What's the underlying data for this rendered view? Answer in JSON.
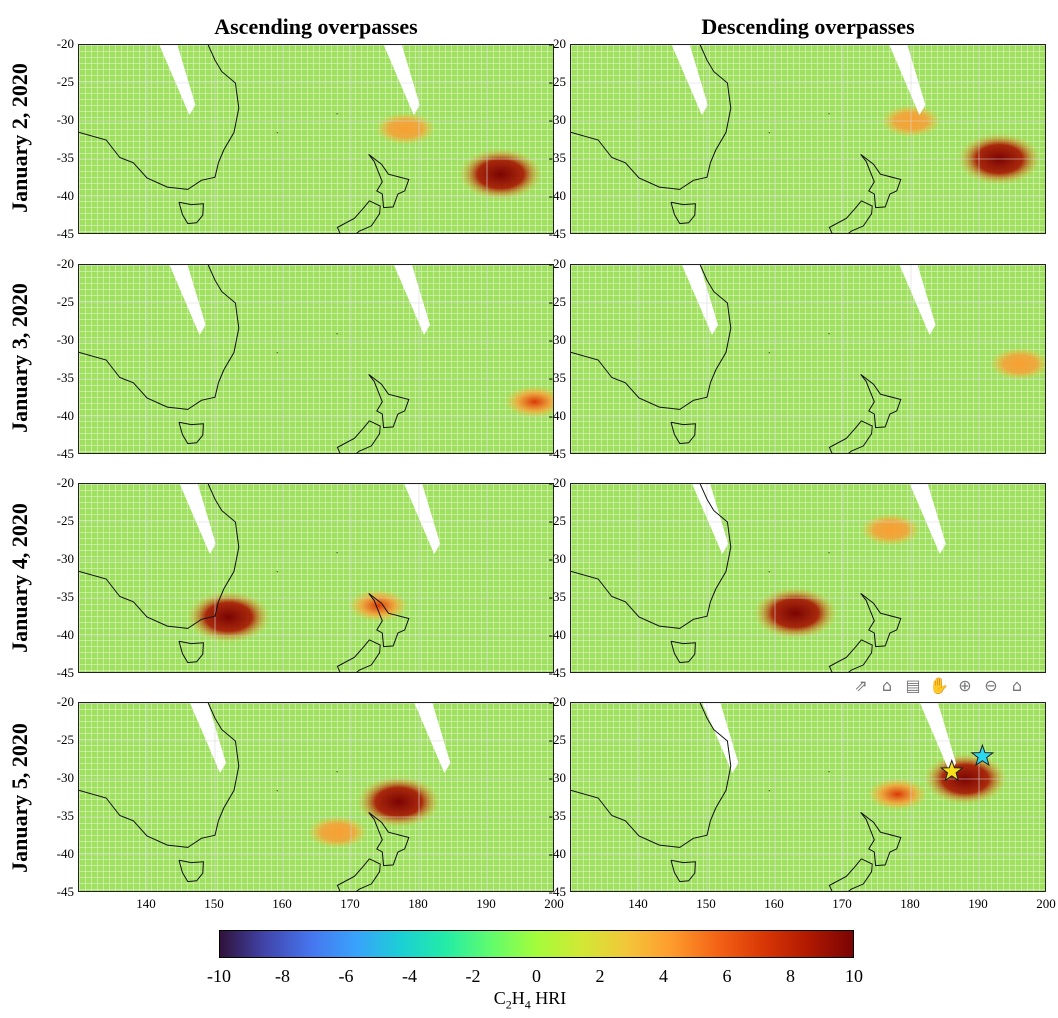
{
  "column_titles": [
    "Ascending overpasses",
    "Descending overpasses"
  ],
  "row_titles": [
    "January 2, 2020",
    "January 3, 2020",
    "January 4, 2020",
    "January 5, 2020"
  ],
  "colorbar": {
    "ticks": [
      "-10",
      "-8",
      "-6",
      "-4",
      "-2",
      "0",
      "2",
      "4",
      "6",
      "8",
      "10"
    ],
    "label_main": "C",
    "label_sub1": "2",
    "label_mid": "H",
    "label_sub2": "4",
    "label_tail": " HRI"
  },
  "toolbar": {
    "icons": [
      "export-icon",
      "brush-icon",
      "datatip-icon",
      "pan-icon",
      "zoom-in-icon",
      "zoom-out-icon",
      "home-icon"
    ]
  },
  "chart_data": {
    "type": "heatmap",
    "variable": "C2H4 HRI",
    "colorbar_range": [
      -10,
      10
    ],
    "xlim": [
      130,
      200
    ],
    "ylim": [
      -45,
      -20
    ],
    "xticks": [
      140,
      150,
      160,
      170,
      180,
      190,
      200
    ],
    "yticks": [
      -20,
      -25,
      -30,
      -35,
      -40,
      -45
    ],
    "ytick_labels": [
      "-20",
      "-25",
      "-30",
      "-35",
      "-40",
      "-45"
    ],
    "xtick_labels": [
      "140",
      "150",
      "160",
      "170",
      "180",
      "190",
      "200"
    ],
    "grid": true,
    "panels": [
      {
        "date": "January 2, 2020",
        "pass": "ascending",
        "plumes": [
          {
            "lon": 192,
            "lat": -37,
            "peak_hri": 10
          },
          {
            "lon": 178,
            "lat": -31,
            "peak_hri": 5
          }
        ]
      },
      {
        "date": "January 2, 2020",
        "pass": "descending",
        "plumes": [
          {
            "lon": 193,
            "lat": -35,
            "peak_hri": 10
          },
          {
            "lon": 180,
            "lat": -30,
            "peak_hri": 4
          }
        ]
      },
      {
        "date": "January 3, 2020",
        "pass": "ascending",
        "plumes": [
          {
            "lon": 197,
            "lat": -38,
            "peak_hri": 8
          }
        ]
      },
      {
        "date": "January 3, 2020",
        "pass": "descending",
        "plumes": [
          {
            "lon": 196,
            "lat": -33,
            "peak_hri": 5
          }
        ]
      },
      {
        "date": "January 4, 2020",
        "pass": "ascending",
        "plumes": [
          {
            "lon": 152,
            "lat": -37.5,
            "peak_hri": 10
          },
          {
            "lon": 174,
            "lat": -36,
            "peak_hri": 7
          }
        ]
      },
      {
        "date": "January 4, 2020",
        "pass": "descending",
        "plumes": [
          {
            "lon": 163,
            "lat": -37,
            "peak_hri": 10
          },
          {
            "lon": 177,
            "lat": -26,
            "peak_hri": 3
          }
        ]
      },
      {
        "date": "January 5, 2020",
        "pass": "ascending",
        "plumes": [
          {
            "lon": 177,
            "lat": -33,
            "peak_hri": 10
          },
          {
            "lon": 168,
            "lat": -37,
            "peak_hri": 5
          }
        ]
      },
      {
        "date": "January 5, 2020",
        "pass": "descending",
        "plumes": [
          {
            "lon": 188,
            "lat": -30,
            "peak_hri": 10
          },
          {
            "lon": 178,
            "lat": -32,
            "peak_hri": 6
          }
        ]
      }
    ],
    "markers": [
      {
        "panel": "January 5, 2020 descending",
        "shape": "star",
        "color": "#f5e01a",
        "lon": 186,
        "lat": -29
      },
      {
        "panel": "January 5, 2020 descending",
        "shape": "star",
        "color": "#2ad8f0",
        "lon": 190.5,
        "lat": -27
      }
    ]
  }
}
